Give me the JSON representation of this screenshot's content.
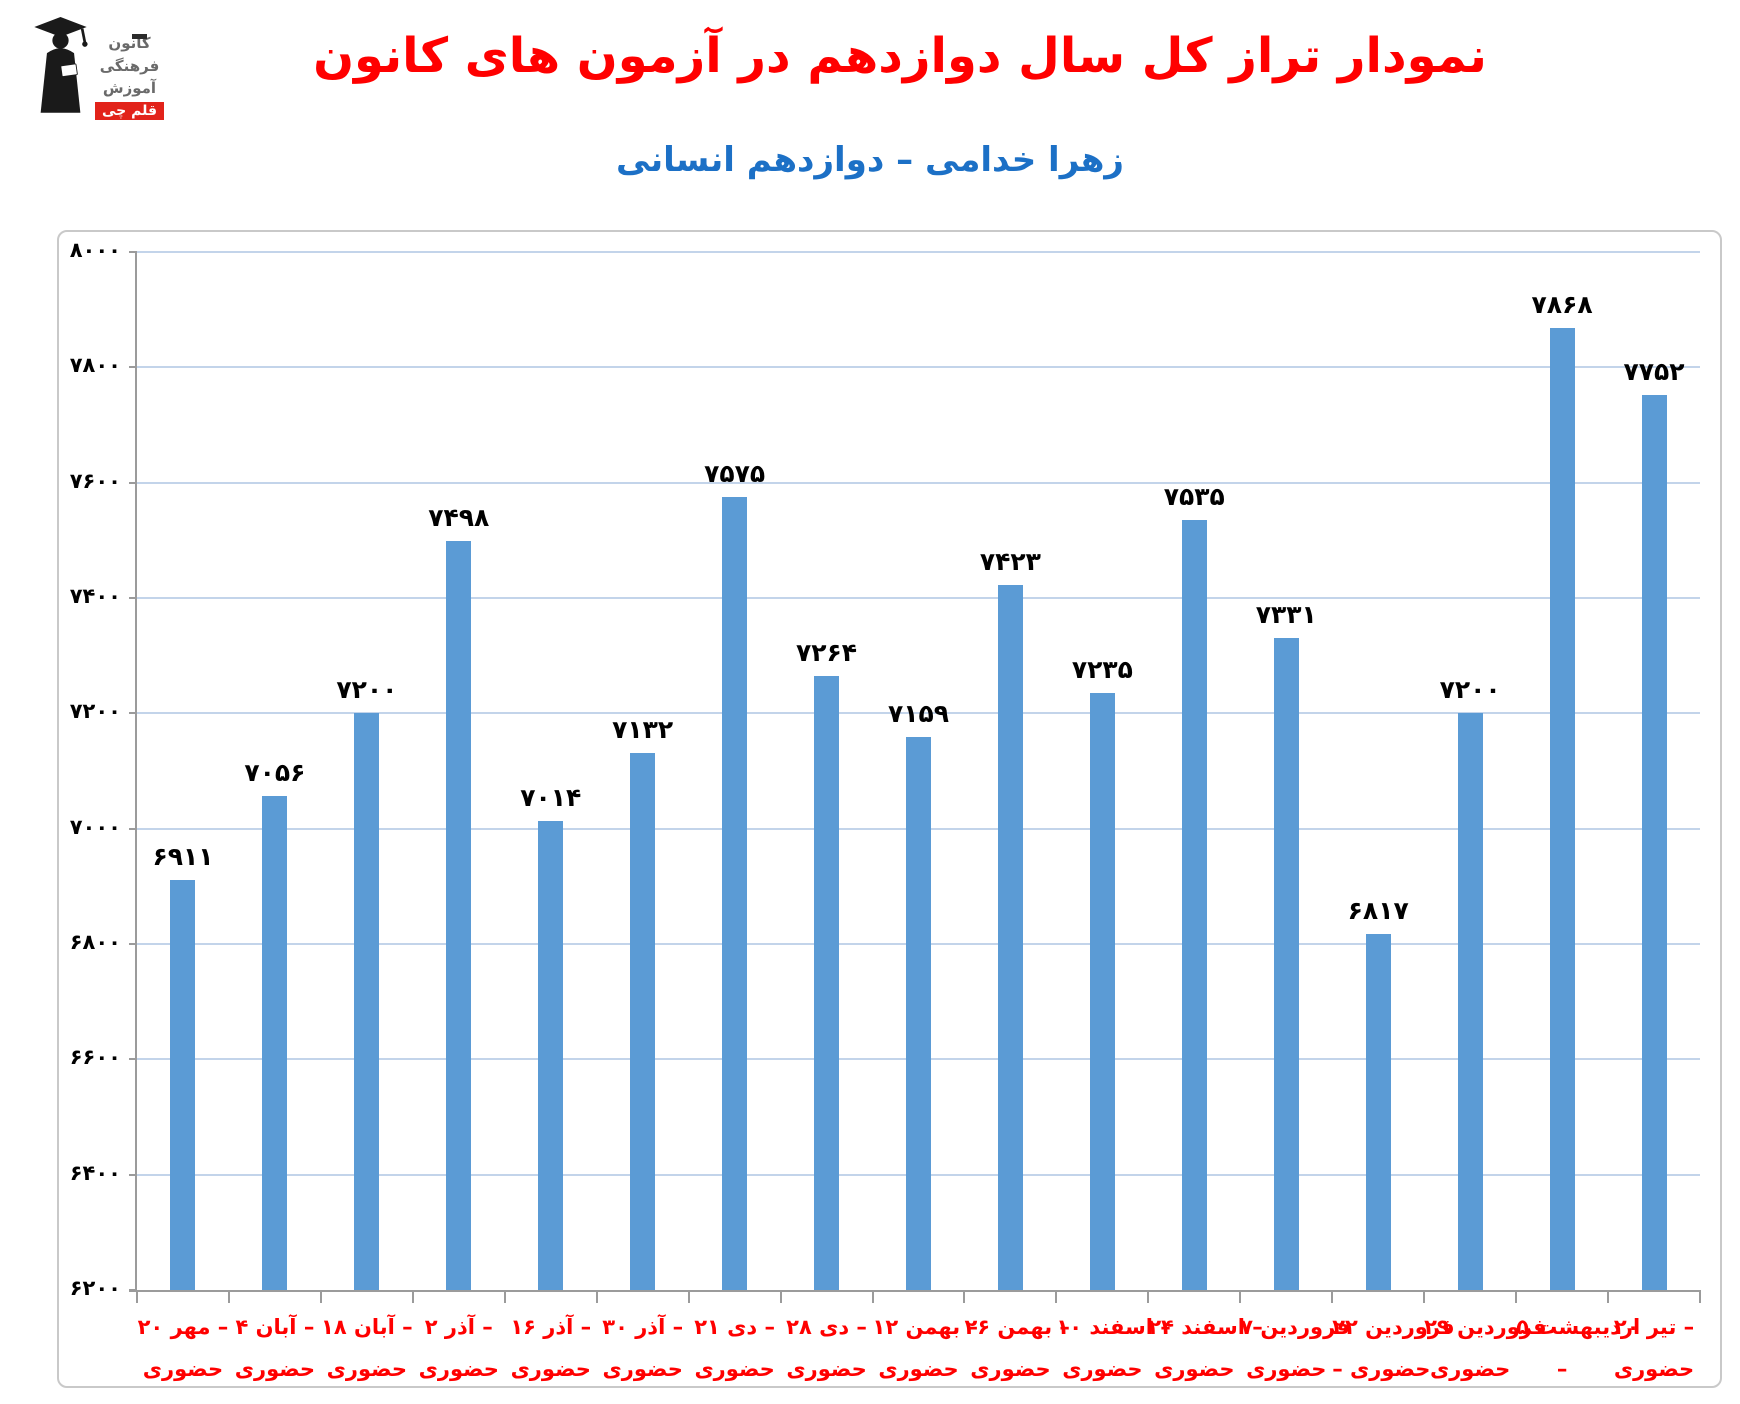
{
  "header": {
    "title": "نمودار تراز کل سال دوازدهم در آزمون های کانون",
    "title_color": "#ff0000",
    "subtitle": "زهرا خدامی – دوازدهم انسانی",
    "subtitle_color": "#1c70c6"
  },
  "logo": {
    "words": [
      "کانون",
      "فرهنگی",
      "آموزش"
    ],
    "badge": "قلم چی",
    "badge_color": "#e2231a"
  },
  "chart_data": {
    "type": "bar",
    "title": "نمودار تراز کل سال دوازدهم در آزمون های کانون",
    "subtitle": "زهرا خدامی – دوازدهم انسانی",
    "categories": [
      "۲۰ مهر – حضوری",
      "۴ آبان – حضوری",
      "۱۸ آبان – حضوری",
      "۲ آذر – حضوری",
      "۱۶ آذر – حضوری",
      "۳۰ آذر – حضوری",
      "۲۱ دی – حضوری",
      "۲۸ دی – حضوری",
      "۱۲ بهمن – حضوری",
      "۲۶ بهمن – حضوری",
      "۱۰ اسفند – حضوری",
      "۲۴ اسفند – حضوری",
      "۷ فروردین – حضوری",
      "۲۲ فروردین – حضوری",
      "۲۹ فروردین – حضوری",
      "۵ اردیبهشت – حضوری",
      "۲۰ تیر – حضوری"
    ],
    "categories_display": [
      {
        "line1": "۲۰‎ مهر‎ –",
        "line2": "حضوری"
      },
      {
        "line1": "۴‎ آبان‎ –",
        "line2": "حضوری"
      },
      {
        "line1": "۱۸‎ آبان‎ –",
        "line2": "حضوری"
      },
      {
        "line1": "۲‎ آذر‎ –",
        "line2": "حضوری"
      },
      {
        "line1": "۱۶‎ آذر‎ –",
        "line2": "حضوری"
      },
      {
        "line1": "۳۰‎ آذر‎ –",
        "line2": "حضوری"
      },
      {
        "line1": "۲۱‎ دی‎ –",
        "line2": "حضوری"
      },
      {
        "line1": "۲۸‎ دی‎ –",
        "line2": "حضوری"
      },
      {
        "line1": "۱۲‎ بهمن‎ –",
        "line2": "حضوری"
      },
      {
        "line1": "۲۶‎ بهمن‎ –",
        "line2": "حضوری"
      },
      {
        "line1": "۱۰‎ اسفند‎ –",
        "line2": "حضوری"
      },
      {
        "line1": "۲۴‎ اسفند‎ –",
        "line2": "حضوری"
      },
      {
        "line1": "۷‎ فروردین",
        "line2": "حضوری"
      },
      {
        "line1": "۲۲‎ فروردین",
        "line2": "– حضوری"
      },
      {
        "line1": "۲۹‎ فروردین",
        "line2": "حضوری"
      },
      {
        "line1": "۵‎ اردیبهشت",
        "line2": "–"
      },
      {
        "line1": "۲۰‎ تیر‎ –",
        "line2": "حضوری"
      }
    ],
    "values": [
      6911,
      7056,
      7200,
      7498,
      7014,
      7132,
      7575,
      7264,
      7159,
      7423,
      7235,
      7535,
      7331,
      6817,
      7200,
      7868,
      7752
    ],
    "values_fa": [
      "۶۹۱۱",
      "۷۰۵۶",
      "۷۲۰۰",
      "۷۴۹۸",
      "۷۰۱۴",
      "۷۱۳۲",
      "۷۵۷۵",
      "۷۲۶۴",
      "۷۱۵۹",
      "۷۴۲۳",
      "۷۲۳۵",
      "۷۵۳۵",
      "۷۳۳۱",
      "۶۸۱۷",
      "۷۲۰۰",
      "۷۸۶۸",
      "۷۷۵۲"
    ],
    "ylim": [
      6200,
      8000
    ],
    "ytick_step": 200,
    "ytick_values": [
      8000,
      7800,
      7600,
      7400,
      7200,
      7000,
      6800,
      6600,
      6400,
      6200
    ],
    "ytick_labels_fa": [
      "۸۰۰۰",
      "۷۸۰۰",
      "۷۶۰۰",
      "۷۴۰۰",
      "۷۲۰۰",
      "۷۰۰۰",
      "۶۸۰۰",
      "۶۶۰۰",
      "۶۴۰۰",
      "۶۲۰۰"
    ],
    "grid": "horizontal",
    "legend": "none",
    "bar_color": "#5b9bd5",
    "gridline_color": "#c3d4ea",
    "axis_color": "#9b9b9b",
    "value_label_color": "#000000",
    "category_label_color": "#ff0000"
  }
}
